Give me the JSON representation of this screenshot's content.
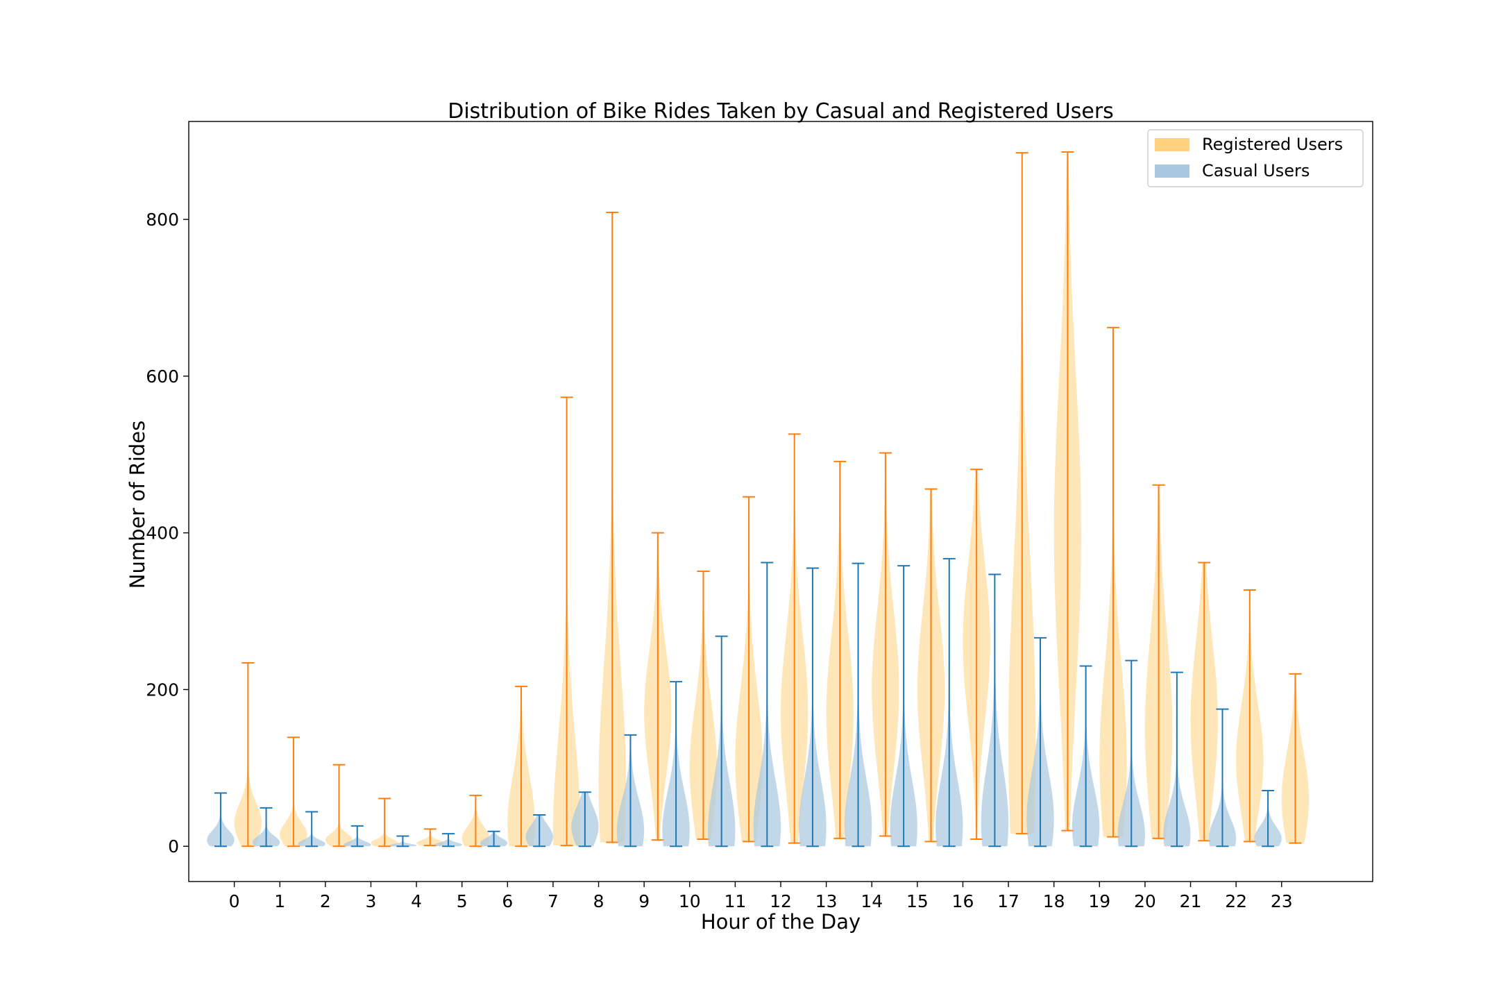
{
  "chart_data": {
    "type": "violin",
    "title": "Distribution of Bike Rides Taken by Casual and Registered Users",
    "xlabel": "Hour of the Day",
    "ylabel": "Number of Rides",
    "categories": [
      "0",
      "1",
      "2",
      "3",
      "4",
      "5",
      "6",
      "7",
      "8",
      "9",
      "10",
      "11",
      "12",
      "13",
      "14",
      "15",
      "16",
      "17",
      "18",
      "19",
      "20",
      "21",
      "22",
      "23"
    ],
    "ylim": [
      -45,
      925
    ],
    "yticks": [
      0,
      200,
      400,
      600,
      800
    ],
    "grid": false,
    "legend_position": "top-right",
    "series": [
      {
        "name": "Registered Users",
        "color": "#ffd27f",
        "line_color": "#ff7f0e",
        "offset": 0.3,
        "min": [
          0,
          0,
          0,
          0,
          1,
          0,
          0,
          1,
          5,
          8,
          9,
          6,
          4,
          10,
          13,
          6,
          9,
          16,
          20,
          12,
          10,
          7,
          6,
          4
        ],
        "max": [
          234,
          139,
          104,
          61,
          22,
          65,
          204,
          573,
          809,
          400,
          351,
          446,
          526,
          491,
          502,
          456,
          481,
          885,
          886,
          662,
          461,
          362,
          327,
          220
        ],
        "mode": [
          30,
          15,
          8,
          4,
          4,
          10,
          30,
          20,
          80,
          170,
          100,
          110,
          170,
          170,
          200,
          200,
          260,
          140,
          400,
          110,
          150,
          160,
          110,
          60
        ],
        "spread": [
          25,
          15,
          8,
          5,
          4,
          15,
          60,
          120,
          150,
          80,
          80,
          90,
          100,
          100,
          100,
          100,
          100,
          220,
          200,
          120,
          120,
          100,
          70,
          60
        ]
      },
      {
        "name": "Casual Users",
        "color": "#a8c7e0",
        "line_color": "#1f77b4",
        "offset": -0.3,
        "min": [
          0,
          0,
          0,
          0,
          0,
          0,
          0,
          0,
          0,
          0,
          0,
          0,
          0,
          0,
          0,
          0,
          0,
          0,
          0,
          0,
          0,
          0,
          0,
          0
        ],
        "max": [
          68,
          49,
          44,
          26,
          13,
          16,
          19,
          40,
          69,
          142,
          210,
          268,
          362,
          355,
          361,
          358,
          367,
          347,
          266,
          230,
          237,
          222,
          175,
          71
        ],
        "mode": [
          8,
          5,
          3,
          2,
          1,
          2,
          4,
          12,
          25,
          20,
          20,
          20,
          25,
          25,
          25,
          25,
          25,
          30,
          35,
          25,
          15,
          15,
          10,
          10
        ],
        "spread": [
          12,
          8,
          5,
          4,
          2,
          3,
          6,
          15,
          25,
          40,
          50,
          60,
          60,
          60,
          60,
          60,
          60,
          70,
          60,
          50,
          40,
          35,
          25,
          15
        ]
      }
    ]
  }
}
